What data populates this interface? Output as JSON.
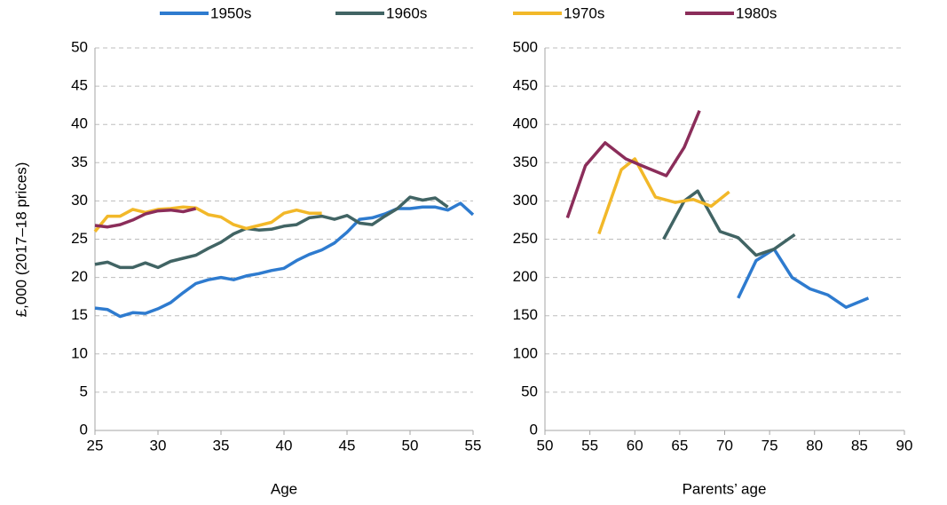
{
  "chart_data": [
    {
      "type": "line",
      "x_label": "Age",
      "y_label": "£,000 (2017–18 prices)",
      "x": [
        25,
        26,
        27,
        28,
        29,
        30,
        31,
        32,
        33,
        34,
        35,
        36,
        37,
        38,
        39,
        40,
        41,
        42,
        43,
        44,
        45,
        46,
        47,
        48,
        49,
        50,
        51,
        52,
        53,
        54,
        55
      ],
      "series": [
        {
          "name": "1950s",
          "color": "#2e7bcf",
          "values": [
            16,
            15.8,
            14.9,
            15.4,
            15.3,
            15.9,
            16.7,
            18,
            19.2,
            19.7,
            20,
            19.7,
            20.2,
            20.5,
            20.9,
            21.2,
            22.2,
            23,
            23.6,
            24.5,
            25.9,
            27.6,
            27.8,
            28.3,
            29,
            29,
            29.2,
            29.2,
            28.8,
            29.7,
            28.2
          ]
        },
        {
          "name": "1960s",
          "color": "#416464",
          "values": [
            21.7,
            22,
            21.3,
            21.3,
            21.9,
            21.3,
            22.1,
            22.5,
            22.9,
            23.8,
            24.6,
            25.7,
            26.4,
            26.2,
            26.3,
            26.7,
            26.9,
            27.8,
            28,
            27.6,
            28.1,
            27.1,
            26.9,
            28,
            29,
            30.5,
            30.1,
            30.4,
            29.2,
            null,
            null
          ]
        },
        {
          "name": "1970s",
          "color": "#f2b829",
          "values": [
            26,
            28,
            28,
            28.9,
            28.5,
            28.9,
            29,
            29.2,
            29.1,
            28.2,
            27.9,
            26.9,
            26.4,
            26.8,
            27.2,
            28.4,
            28.8,
            28.4,
            28.4,
            null,
            null,
            null,
            null,
            null,
            null,
            null,
            null,
            null,
            null,
            null,
            null
          ]
        },
        {
          "name": "1980s",
          "color": "#8b2d5a",
          "values": [
            26.8,
            26.6,
            26.9,
            27.5,
            28.3,
            28.7,
            28.8,
            28.6,
            29,
            null,
            null,
            null,
            null,
            null,
            null,
            null,
            null,
            null,
            null,
            null,
            null,
            null,
            null,
            null,
            null,
            null,
            null,
            null,
            null,
            null,
            null
          ]
        }
      ],
      "xlim": [
        25,
        55
      ],
      "xticks": [
        25,
        30,
        35,
        40,
        45,
        50,
        55
      ],
      "ylim": [
        0,
        50
      ],
      "yticks": [
        0,
        5,
        10,
        15,
        20,
        25,
        30,
        35,
        40,
        45,
        50
      ],
      "grid": true
    },
    {
      "type": "line",
      "x_label": "Parents’ age",
      "series": [
        {
          "name": "1950s",
          "color": "#2e7bcf",
          "x": [
            71.5,
            73.5,
            75.5,
            77.5,
            79.5,
            81.5,
            83.5,
            86
          ],
          "values": [
            173,
            222,
            237,
            200,
            185,
            177,
            161,
            173
          ]
        },
        {
          "name": "1960s",
          "color": "#416464",
          "x": [
            63.2,
            65.5,
            67,
            69.5,
            71.5,
            73.5,
            75.5,
            77.8
          ],
          "values": [
            250,
            300,
            313,
            260,
            252,
            229,
            237,
            256
          ]
        },
        {
          "name": "1970s",
          "color": "#f2b829",
          "x": [
            56,
            58.5,
            60,
            62.3,
            64.5,
            66.5,
            68.5,
            70.5
          ],
          "values": [
            257,
            341,
            355,
            305,
            298,
            302,
            293,
            312
          ]
        },
        {
          "name": "1980s",
          "color": "#8b2d5a",
          "x": [
            52.5,
            54.5,
            56.7,
            59,
            61,
            63.5,
            65.5,
            67.2
          ],
          "values": [
            278,
            346,
            376,
            355,
            345,
            333,
            370,
            418
          ]
        }
      ],
      "xlim": [
        50,
        90
      ],
      "xticks": [
        50,
        55,
        60,
        65,
        70,
        75,
        80,
        85,
        90
      ],
      "ylim": [
        0,
        500
      ],
      "yticks": [
        0,
        50,
        100,
        150,
        200,
        250,
        300,
        350,
        400,
        450,
        500
      ],
      "grid": true
    }
  ]
}
